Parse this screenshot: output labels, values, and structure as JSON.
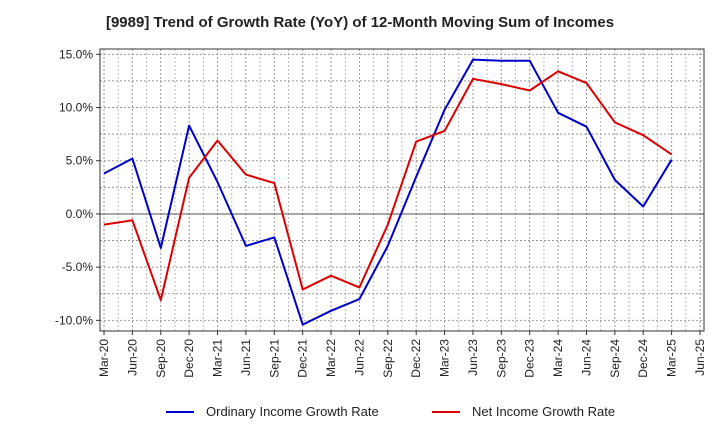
{
  "chart_data": {
    "type": "line",
    "title": "[9989]  Trend of Growth Rate (YoY) of 12-Month Moving Sum of Incomes",
    "xlabel": "",
    "ylabel": "",
    "ylim": [
      -11,
      15.5
    ],
    "y_ticks": [
      "15.0%",
      "10.0%",
      "5.0%",
      "0.0%",
      "-5.0%",
      "-10.0%"
    ],
    "y_tick_values": [
      15,
      10,
      5,
      0,
      -5,
      -10
    ],
    "x_tick_labels": [
      "Mar-20",
      "Jun-20",
      "Sep-20",
      "Dec-20",
      "Mar-21",
      "Jun-21",
      "Sep-21",
      "Dec-21",
      "Mar-22",
      "Jun-22",
      "Sep-22",
      "Dec-22",
      "Mar-23",
      "Jun-23",
      "Sep-23",
      "Dec-23",
      "Mar-24",
      "Jun-24",
      "Sep-24",
      "Dec-24",
      "Mar-25",
      "Jun-25"
    ],
    "grid": true,
    "legend_position": "bottom",
    "series": [
      {
        "name": "Ordinary Income Growth Rate",
        "color": "#0000cc",
        "values": [
          3.8,
          5.2,
          -3.2,
          8.3,
          3.0,
          -3.0,
          -2.2,
          -10.4,
          -9.1,
          -8.0,
          -3.0,
          3.5,
          9.8,
          14.5,
          14.4,
          14.4,
          9.5,
          8.2,
          3.2,
          0.7,
          5.1,
          null
        ]
      },
      {
        "name": "Net Income Growth Rate",
        "color": "#dd0000",
        "values": [
          -1.0,
          -0.6,
          -8.1,
          3.4,
          6.9,
          3.7,
          2.9,
          -7.1,
          -5.8,
          -6.9,
          -1.0,
          6.8,
          7.8,
          12.7,
          12.2,
          11.6,
          13.4,
          12.3,
          8.6,
          7.4,
          5.6,
          null
        ]
      }
    ]
  }
}
